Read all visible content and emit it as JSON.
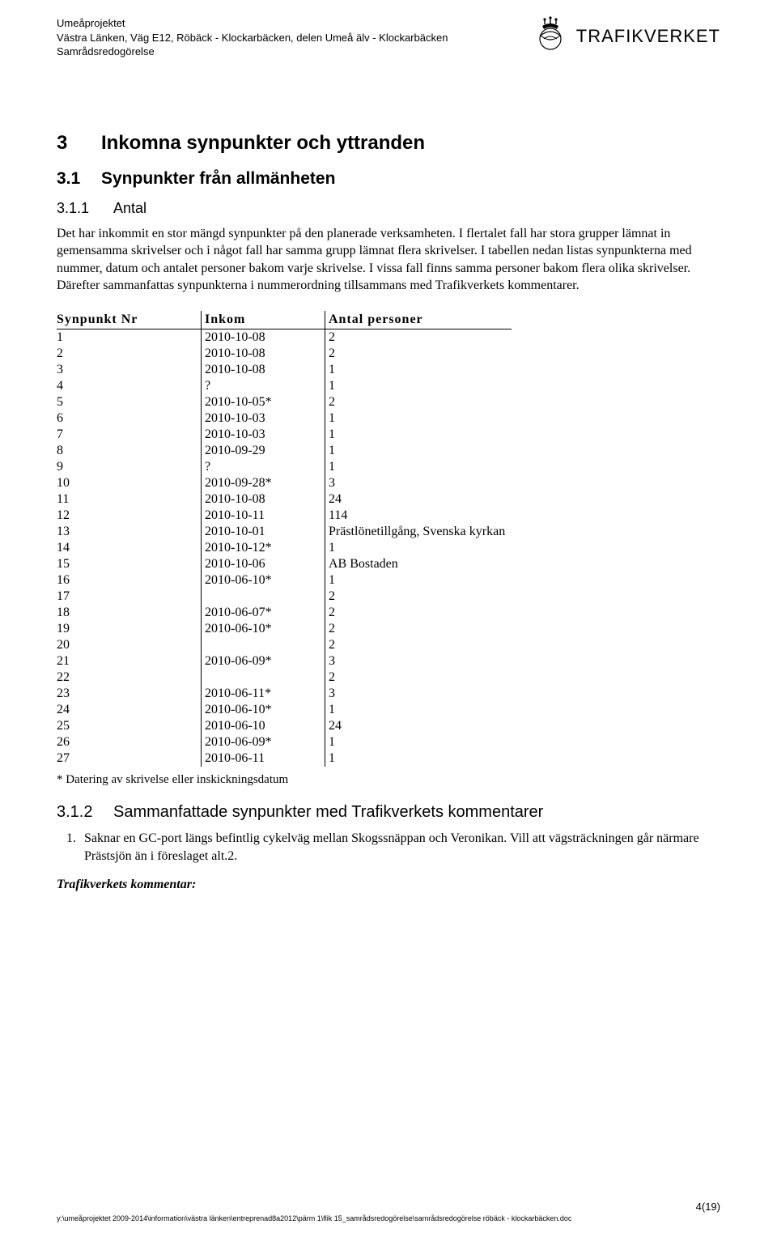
{
  "header": {
    "line1": "Umeåprojektet",
    "line2": "Västra Länken, Väg E12, Röbäck - Klockarbäcken, delen Umeå älv - Klockarbäcken",
    "line3": "Samrådsredogörelse",
    "logo_text": "TRAFIKVERKET"
  },
  "section3": {
    "num": "3",
    "title": "Inkomna synpunkter och yttranden"
  },
  "section31": {
    "num": "3.1",
    "title": "Synpunkter från allmänheten"
  },
  "section311": {
    "num": "3.1.1",
    "title": "Antal"
  },
  "para1": "Det har inkommit en stor mängd synpunkter på den planerade verksamheten. I flertalet fall har stora grupper lämnat in gemensamma skrivelser och i något fall har samma grupp lämnat flera skrivelser. I tabellen nedan listas synpunkterna med nummer, datum och antalet personer bakom varje skrivelse. I vissa fall finns samma personer bakom flera olika skrivelser. Därefter sammanfattas synpunkterna i nummerordning tillsammans med Trafikverkets kommentarer.",
  "table": {
    "headers": [
      "Synpunkt Nr",
      "Inkom",
      "Antal personer"
    ],
    "rows": [
      [
        "1",
        "2010-10-08",
        "2"
      ],
      [
        "2",
        "2010-10-08",
        "2"
      ],
      [
        "3",
        "2010-10-08",
        "1"
      ],
      [
        "4",
        "?",
        "1"
      ],
      [
        "5",
        "2010-10-05*",
        "2"
      ],
      [
        "6",
        "2010-10-03",
        "1"
      ],
      [
        "7",
        "2010-10-03",
        "1"
      ],
      [
        "8",
        "2010-09-29",
        "1"
      ],
      [
        "9",
        "?",
        "1"
      ],
      [
        "10",
        "2010-09-28*",
        "3"
      ],
      [
        "11",
        "2010-10-08",
        "24"
      ],
      [
        "12",
        "2010-10-11",
        "114"
      ],
      [
        "13",
        "2010-10-01",
        "Prästlönetillgång, Svenska kyrkan"
      ],
      [
        "14",
        "2010-10-12*",
        "1"
      ],
      [
        "15",
        "2010-10-06",
        "AB Bostaden"
      ],
      [
        "16",
        "2010-06-10*",
        "1"
      ],
      [
        "17",
        "",
        "2"
      ],
      [
        "18",
        "2010-06-07*",
        "2"
      ],
      [
        "19",
        "2010-06-10*",
        "2"
      ],
      [
        "20",
        "",
        "2"
      ],
      [
        "21",
        "2010-06-09*",
        "3"
      ],
      [
        "22",
        "",
        "2"
      ],
      [
        "23",
        "2010-06-11*",
        "3"
      ],
      [
        "24",
        "2010-06-10*",
        "1"
      ],
      [
        "25",
        "2010-06-10",
        "24"
      ],
      [
        "26",
        "2010-06-09*",
        "1"
      ],
      [
        "27",
        "2010-06-11",
        "1"
      ]
    ],
    "note": "* Datering av skrivelse eller inskickningsdatum"
  },
  "section312": {
    "num": "3.1.2",
    "title": "Sammanfattade synpunkter med Trafikverkets kommentarer"
  },
  "point1": "Saknar en GC-port längs befintlig cykelväg mellan Skogssnäppan och Veronikan. Vill att vägsträckningen går närmare Prästsjön än i föreslaget alt.2.",
  "comment_label": "Trafikverkets kommentar:",
  "footer": {
    "page": "4(19)",
    "path": "y:\\umeåprojektet 2009-2014\\information\\västra länken\\entreprenad8a2012\\pärm 1\\flik 15_samrådsredogörelse\\samrådsredogörelse röbäck - klockarbäcken.doc"
  }
}
